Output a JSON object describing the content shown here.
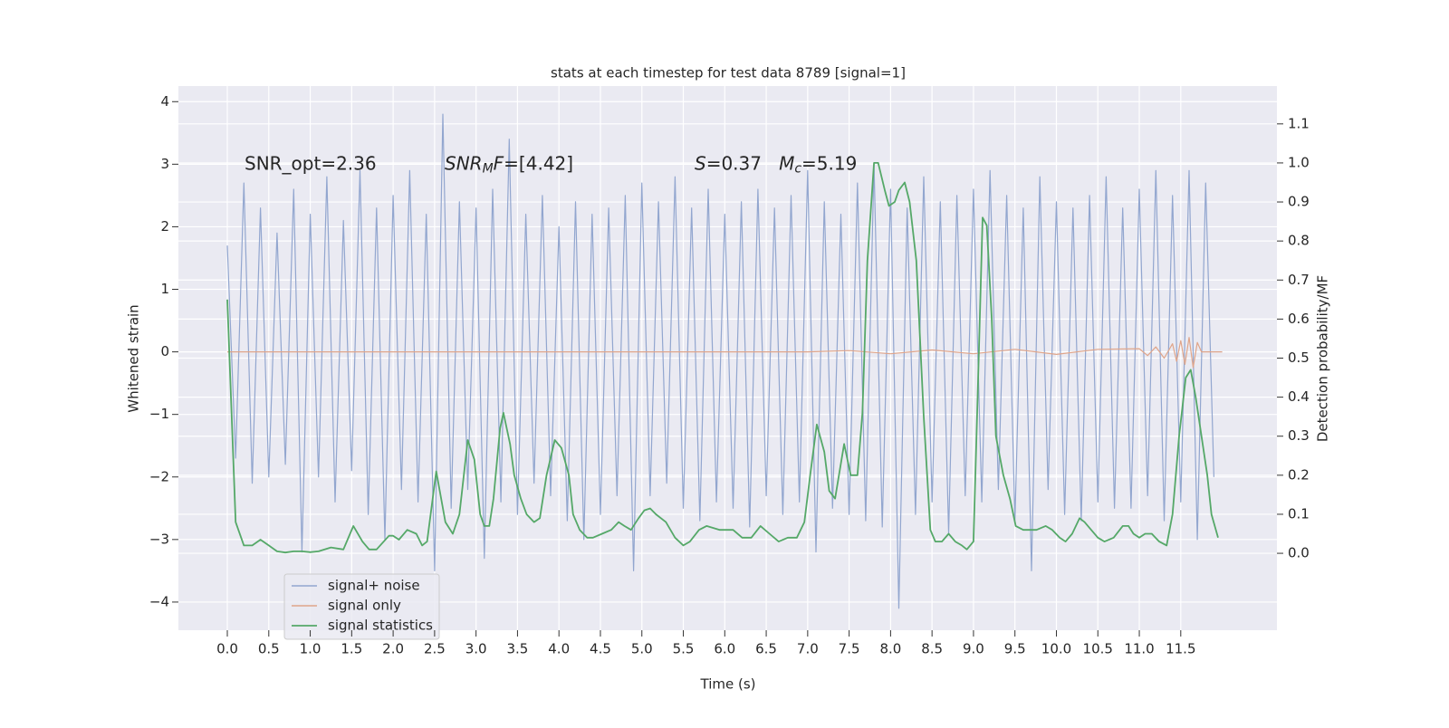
{
  "chart_data": {
    "type": "line",
    "title": "stats at each timestep for test data 8789 [signal=1]",
    "xlabel": "Time (s)",
    "ylabel": "Whitened strain",
    "y2label": "Detection probability/MF",
    "annotations": [
      {
        "parts": [
          {
            "text": "SNR_opt=2.36"
          }
        ]
      },
      {
        "parts": [
          {
            "text": "SNR",
            "style": "italic"
          },
          {
            "text": "M",
            "style": "italic",
            "sub": true
          },
          {
            "text": "F",
            "style": "italic"
          },
          {
            "text": "=[4.42]"
          }
        ]
      },
      {
        "parts": [
          {
            "text": "S",
            "style": "italic"
          },
          {
            "text": "=0.37   "
          },
          {
            "text": "M",
            "style": "italic"
          },
          {
            "text": "c",
            "style": "italic",
            "sub": true
          },
          {
            "text": "=5.19"
          }
        ]
      }
    ],
    "xlim": [
      -0.59,
      12.66
    ],
    "ylim": [
      -4.45,
      4.25
    ],
    "y2lim": [
      -0.197,
      1.197
    ],
    "xticks": [
      {
        "value": 0,
        "label": "0.0"
      },
      0.5,
      {
        "value": 1,
        "label": "1.0"
      },
      1.5,
      {
        "value": 2,
        "label": "2.0"
      },
      2.5,
      {
        "value": 3,
        "label": "3.0"
      },
      3.5,
      {
        "value": 4,
        "label": "4.0"
      },
      4.5,
      {
        "value": 5,
        "label": "5.0"
      },
      5.5,
      {
        "value": 6,
        "label": "6.0"
      },
      6.5,
      {
        "value": 7,
        "label": "7.0"
      },
      7.5,
      {
        "value": 8,
        "label": "8.0"
      },
      8.5,
      {
        "value": 9,
        "label": "9.0"
      },
      9.5,
      {
        "value": 10,
        "label": "10.0"
      },
      10.5,
      {
        "value": 11,
        "label": "11.0"
      },
      11.5
    ],
    "yticks": [
      {
        "value": -4,
        "label": "−4"
      },
      {
        "value": -3,
        "label": "−3"
      },
      {
        "value": -2,
        "label": "−2"
      },
      {
        "value": -1,
        "label": "−1"
      },
      0,
      1,
      2,
      3,
      4
    ],
    "y2ticks": [
      {
        "value": 0,
        "label": "0.0"
      },
      0.1,
      0.2,
      0.3,
      0.4,
      0.5,
      0.6,
      0.7,
      0.8,
      0.9,
      {
        "value": 1,
        "label": "1.0"
      },
      1.1
    ],
    "grid": true,
    "legend": "lower left",
    "series": [
      {
        "name": "signal+ noise",
        "color": "#92a6cf",
        "x": [
          0,
          0.1,
          0.2,
          0.3,
          0.4,
          0.5,
          0.6,
          0.7,
          0.8,
          0.9,
          1,
          1.1,
          1.2,
          1.3,
          1.4,
          1.5,
          1.6,
          1.7,
          1.8,
          1.9,
          2,
          2.1,
          2.2,
          2.3,
          2.4,
          2.5,
          2.6,
          2.7,
          2.8,
          2.9,
          3,
          3.1,
          3.2,
          3.3,
          3.4,
          3.5,
          3.6,
          3.7,
          3.8,
          3.9,
          4,
          4.1,
          4.2,
          4.3,
          4.4,
          4.5,
          4.6,
          4.7,
          4.8,
          4.9,
          5,
          5.1,
          5.2,
          5.3,
          5.4,
          5.5,
          5.6,
          5.7,
          5.8,
          5.9,
          6,
          6.1,
          6.2,
          6.3,
          6.4,
          6.5,
          6.6,
          6.7,
          6.8,
          6.9,
          7,
          7.1,
          7.2,
          7.3,
          7.4,
          7.5,
          7.6,
          7.7,
          7.8,
          7.9,
          8,
          8.1,
          8.2,
          8.3,
          8.4,
          8.5,
          8.6,
          8.7,
          8.8,
          8.9,
          9,
          9.1,
          9.2,
          9.3,
          9.4,
          9.5,
          9.6,
          9.7,
          9.8,
          9.9,
          10,
          10.1,
          10.2,
          10.3,
          10.4,
          10.5,
          10.6,
          10.7,
          10.8,
          10.9,
          11,
          11.1,
          11.2,
          11.3,
          11.4,
          11.5,
          11.6,
          11.7,
          11.8,
          11.9
        ],
        "values": [
          1.7,
          -1.7,
          2.7,
          -2.1,
          2.3,
          -2.0,
          1.9,
          -1.8,
          2.6,
          -3.2,
          2.2,
          -2.0,
          2.8,
          -2.4,
          2.1,
          -1.9,
          2.9,
          -2.6,
          2.3,
          -3.0,
          2.5,
          -2.2,
          2.9,
          -2.4,
          2.2,
          -3.5,
          3.8,
          -2.5,
          2.4,
          -2.2,
          2.3,
          -3.3,
          2.6,
          -2.4,
          3.4,
          -2.6,
          2.2,
          -2.1,
          2.5,
          -2.3,
          2.0,
          -2.7,
          2.4,
          -3.0,
          2.2,
          -2.6,
          2.3,
          -2.3,
          2.5,
          -3.5,
          2.7,
          -2.3,
          2.4,
          -2.1,
          2.8,
          -2.5,
          2.3,
          -2.7,
          2.6,
          -2.4,
          2.2,
          -2.5,
          2.4,
          -2.8,
          2.6,
          -2.3,
          2.3,
          -2.6,
          2.5,
          -2.4,
          2.9,
          -3.2,
          2.4,
          -2.5,
          2.2,
          -2.6,
          2.7,
          -2.7,
          3.0,
          -2.8,
          2.6,
          -4.1,
          2.3,
          -2.6,
          2.8,
          -2.4,
          2.4,
          -2.9,
          2.5,
          -2.3,
          2.6,
          -2.4,
          2.9,
          -2.2,
          2.5,
          -2.7,
          2.3,
          -3.5,
          2.8,
          -2.2,
          2.4,
          -2.6,
          2.3,
          -2.7,
          2.5,
          -2.4,
          2.8,
          -2.5,
          2.3,
          -2.5,
          2.6,
          -2.3,
          2.9,
          -2.7,
          2.5,
          -2.4,
          2.9,
          -3.0,
          2.7,
          -2.0
        ]
      },
      {
        "name": "signal only",
        "color": "#e0a58a",
        "x": [
          0,
          1,
          2,
          3,
          4,
          5,
          6,
          7,
          7.5,
          8,
          8.5,
          9,
          9.5,
          10,
          10.5,
          11,
          11.1,
          11.2,
          11.3,
          11.4,
          11.45,
          11.5,
          11.55,
          11.6,
          11.65,
          11.7,
          11.75,
          12
        ],
        "values": [
          0,
          0,
          0,
          0,
          0,
          0,
          0,
          0,
          0.02,
          -0.03,
          0.03,
          -0.03,
          0.04,
          -0.04,
          0.04,
          0.05,
          -0.06,
          0.08,
          -0.1,
          0.13,
          -0.15,
          0.18,
          -0.2,
          0.23,
          -0.25,
          0.15,
          0,
          0
        ]
      },
      {
        "name": "signal statistics",
        "color": "#55a868",
        "axis": "y2",
        "x": [
          0,
          0.1,
          0.2,
          0.3,
          0.4,
          0.5,
          0.6,
          0.7,
          0.8,
          0.9,
          1,
          1.1,
          1.25,
          1.4,
          1.52,
          1.63,
          1.71,
          1.8,
          1.95,
          2.0,
          2.07,
          2.17,
          2.28,
          2.35,
          2.41,
          2.52,
          2.63,
          2.72,
          2.8,
          2.9,
          2.98,
          3.05,
          3.1,
          3.16,
          3.21,
          3.29,
          3.33,
          3.41,
          3.46,
          3.54,
          3.61,
          3.7,
          3.77,
          3.85,
          3.95,
          4.03,
          4.12,
          4.17,
          4.25,
          4.34,
          4.41,
          4.52,
          4.63,
          4.72,
          4.79,
          4.87,
          4.96,
          5.03,
          5.1,
          5.17,
          5.29,
          5.4,
          5.5,
          5.58,
          5.69,
          5.78,
          5.94,
          6.1,
          6.21,
          6.32,
          6.43,
          6.54,
          6.65,
          6.76,
          6.87,
          6.96,
          7.03,
          7.11,
          7.2,
          7.26,
          7.33,
          7.44,
          7.52,
          7.6,
          7.66,
          7.72,
          7.8,
          7.85,
          7.93,
          7.98,
          8.05,
          8.1,
          8.17,
          8.23,
          8.31,
          8.4,
          8.48,
          8.54,
          8.62,
          8.7,
          8.78,
          8.86,
          8.92,
          9.0,
          9.05,
          9.11,
          9.16,
          9.22,
          9.27,
          9.36,
          9.44,
          9.51,
          9.6,
          9.76,
          9.87,
          9.95,
          10.04,
          10.11,
          10.19,
          10.28,
          10.34,
          10.42,
          10.5,
          10.58,
          10.69,
          10.8,
          10.87,
          10.93,
          11.0,
          11.07,
          11.15,
          11.24,
          11.33,
          11.4,
          11.48,
          11.56,
          11.62,
          11.68,
          11.75,
          11.82,
          11.87,
          11.95
        ],
        "values": [
          0.65,
          0.08,
          0.02,
          0.02,
          0.035,
          0.02,
          0.005,
          0.002,
          0.005,
          0.005,
          0.003,
          0.005,
          0.015,
          0.01,
          0.07,
          0.03,
          0.01,
          0.01,
          0.045,
          0.045,
          0.035,
          0.06,
          0.05,
          0.02,
          0.03,
          0.21,
          0.08,
          0.05,
          0.1,
          0.29,
          0.24,
          0.1,
          0.07,
          0.07,
          0.14,
          0.32,
          0.36,
          0.28,
          0.2,
          0.14,
          0.1,
          0.08,
          0.09,
          0.2,
          0.29,
          0.27,
          0.2,
          0.1,
          0.06,
          0.04,
          0.04,
          0.05,
          0.06,
          0.08,
          0.07,
          0.06,
          0.09,
          0.11,
          0.115,
          0.1,
          0.08,
          0.04,
          0.02,
          0.03,
          0.06,
          0.07,
          0.06,
          0.06,
          0.04,
          0.04,
          0.07,
          0.05,
          0.03,
          0.04,
          0.04,
          0.08,
          0.2,
          0.33,
          0.26,
          0.16,
          0.14,
          0.28,
          0.2,
          0.2,
          0.36,
          0.75,
          1.0,
          1.0,
          0.93,
          0.89,
          0.9,
          0.93,
          0.95,
          0.9,
          0.75,
          0.35,
          0.06,
          0.03,
          0.03,
          0.05,
          0.03,
          0.02,
          0.01,
          0.03,
          0.4,
          0.86,
          0.84,
          0.6,
          0.3,
          0.2,
          0.14,
          0.07,
          0.06,
          0.06,
          0.07,
          0.06,
          0.04,
          0.03,
          0.05,
          0.09,
          0.08,
          0.06,
          0.04,
          0.03,
          0.04,
          0.07,
          0.07,
          0.05,
          0.04,
          0.05,
          0.05,
          0.03,
          0.02,
          0.1,
          0.3,
          0.45,
          0.47,
          0.4,
          0.3,
          0.2,
          0.1,
          0.04
        ]
      }
    ]
  }
}
